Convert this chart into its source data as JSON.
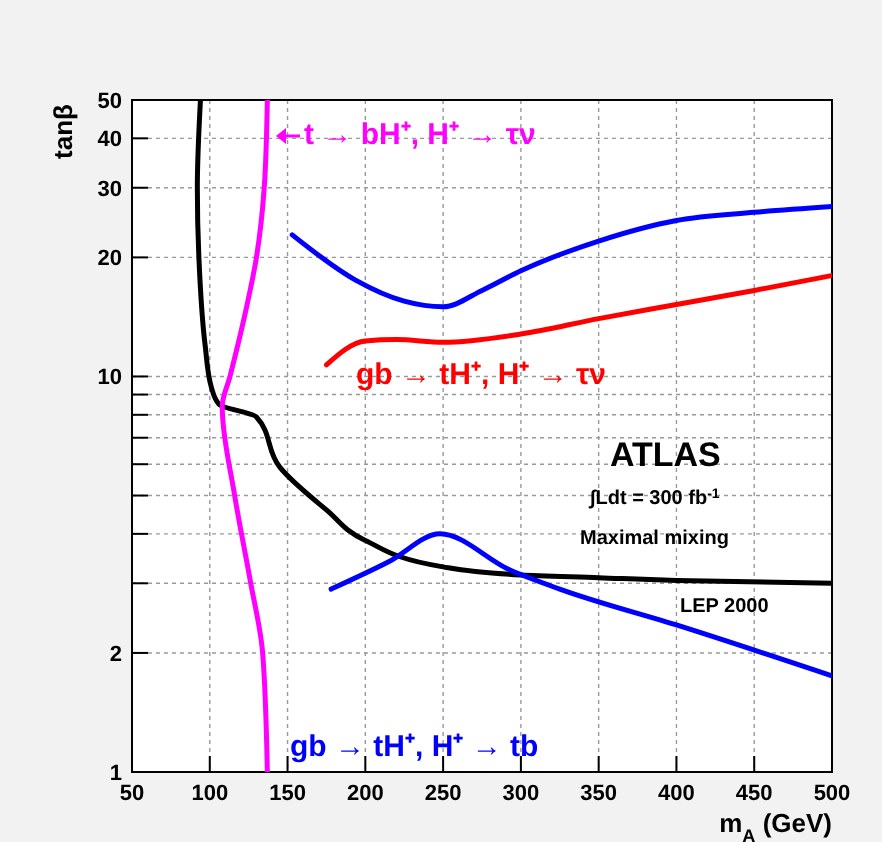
{
  "chart_data": {
    "type": "line",
    "xlabel": "m$_{A}$ (GeV)",
    "ylabel": "tanβ",
    "log": "y",
    "grid": true,
    "line_style": "solid",
    "xlim": [
      50,
      500
    ],
    "ylim": [
      1,
      50
    ],
    "xticks": [
      50,
      100,
      150,
      200,
      250,
      300,
      350,
      400,
      450,
      500
    ],
    "yticks": [
      1,
      2,
      {
        "value": 3,
        "label": null
      },
      {
        "value": 4,
        "label": null
      },
      {
        "value": 5,
        "label": null
      },
      {
        "value": 6,
        "label": null
      },
      {
        "value": 7,
        "label": null
      },
      {
        "value": 8,
        "label": null
      },
      {
        "value": 9,
        "label": null
      },
      10,
      20,
      30,
      40,
      50
    ],
    "series": [
      {
        "name": "LEP 2000",
        "color": "#000000",
        "x": [
          94,
          92,
          93,
          97,
          101,
          106,
          130,
          145,
          175,
          200,
          250,
          300,
          350,
          400,
          500
        ],
        "values": [
          50,
          30,
          20,
          12,
          9.4,
          8.5,
          7.9,
          5.9,
          4.6,
          3.85,
          3.3,
          3.15,
          3.1,
          3.05,
          3.0
        ]
      },
      {
        "name": "t → bH⁺, H⁺ → τν",
        "color": "#ff00ff",
        "x": [
          137,
          135,
          130,
          122,
          113,
          108,
          116,
          126,
          134,
          137
        ],
        "values": [
          50,
          30,
          20,
          14,
          10,
          8.4,
          5.0,
          3.05,
          2,
          1
        ]
      },
      {
        "color": "#0000ff",
        "x": [
          153,
          194,
          225,
          250,
          275,
          300,
          350,
          400,
          450,
          500
        ],
        "values": [
          22.8,
          17.5,
          15.5,
          15.0,
          16.5,
          18.5,
          22,
          24.8,
          26,
          26.9
        ]
      },
      {
        "name": "gb → tH⁺, H⁺ → τν",
        "color": "#ff0000",
        "x": [
          175,
          200,
          220,
          250,
          300,
          350,
          400,
          450,
          500
        ],
        "values": [
          10.7,
          12.3,
          12.4,
          12.2,
          12.8,
          14,
          15.2,
          16.5,
          18
        ]
      },
      {
        "name": "gb → tH⁺, H⁺ → tb",
        "color": "#0000ff",
        "x": [
          178,
          215,
          248,
          293,
          325,
          402,
          500
        ],
        "values": [
          2.9,
          3.4,
          4.0,
          3.24,
          2.9,
          2.34,
          1.75
        ]
      }
    ],
    "annotations": [
      "ATLAS",
      "∫Ldt = 300 fb$^{-1}$",
      "Maximal mixing"
    ]
  }
}
